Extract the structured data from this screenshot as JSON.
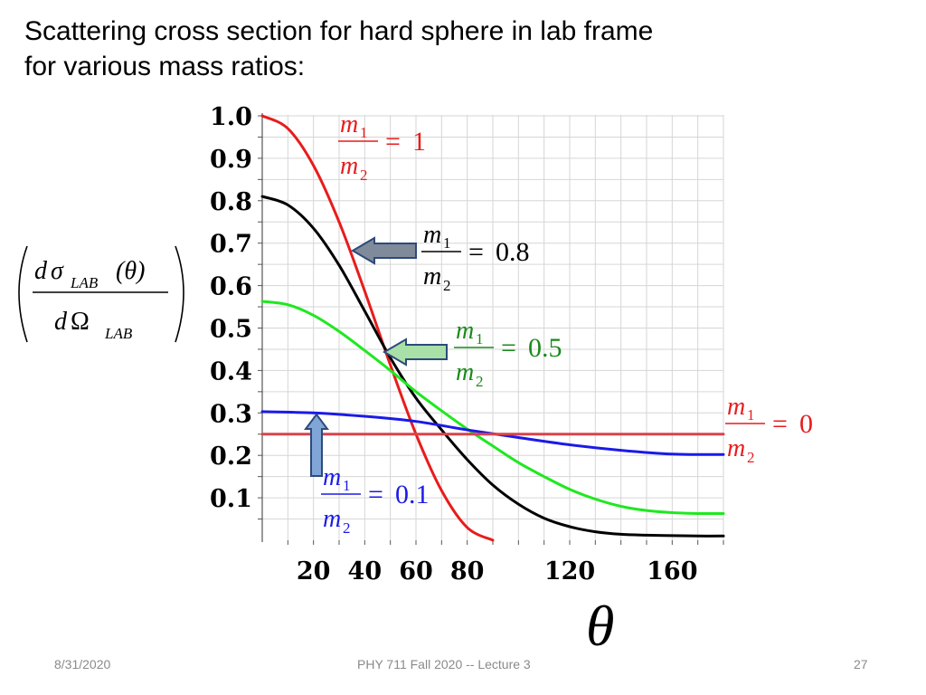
{
  "slide": {
    "title_line1": "Scattering cross section for hard sphere in lab frame",
    "title_line2": "for various mass ratios:",
    "footer_date": "8/31/2020",
    "footer_course": "PHY 711  Fall 2020 -- Lecture 3",
    "footer_page": "27"
  },
  "chart_data": {
    "type": "line",
    "title": "",
    "xlabel": "θ",
    "ylabel_numerator": {
      "d": "d",
      "sigma": "σ",
      "sub": "LAB",
      "arg": "(θ)"
    },
    "ylabel_denominator": {
      "d": "d",
      "omega": "Ω",
      "sub": "LAB"
    },
    "xlim": [
      0,
      180
    ],
    "ylim": [
      0,
      1.05
    ],
    "x_ticks": [
      20,
      40,
      60,
      80,
      120,
      160
    ],
    "y_ticks": [
      0.1,
      0.2,
      0.3,
      0.4,
      0.5,
      0.6,
      0.7,
      0.8,
      0.9,
      1.0
    ],
    "y_tick_labels": [
      "0.1",
      "0.2",
      "0.3",
      "0.4",
      "0.5",
      "0.6",
      "0.7",
      "0.8",
      "0.9",
      "1.0"
    ],
    "x_tick_labels": [
      "20",
      "40",
      "60",
      "80",
      "120",
      "160"
    ],
    "grid": true,
    "series": [
      {
        "color": "#e81c1c",
        "x": [
          0,
          10,
          20,
          30,
          40,
          50,
          60,
          70,
          80,
          90
        ],
        "y": [
          1.0,
          0.97,
          0.883,
          0.75,
          0.587,
          0.413,
          0.25,
          0.117,
          0.03,
          0.0
        ]
      },
      {
        "color": "#000000",
        "x": [
          0,
          10,
          20,
          30,
          40,
          50,
          60,
          70,
          80,
          90,
          100,
          110,
          120,
          130,
          140,
          150,
          160,
          170,
          180
        ],
        "y": [
          0.81,
          0.79,
          0.735,
          0.648,
          0.54,
          0.43,
          0.335,
          0.26,
          0.19,
          0.13,
          0.085,
          0.052,
          0.032,
          0.02,
          0.014,
          0.012,
          0.011,
          0.01,
          0.01
        ]
      },
      {
        "color": "#1fe81f",
        "x": [
          0,
          10,
          20,
          30,
          40,
          50,
          60,
          70,
          80,
          90,
          100,
          110,
          120,
          130,
          140,
          150,
          160,
          170,
          180
        ],
        "y": [
          0.563,
          0.555,
          0.53,
          0.492,
          0.447,
          0.4,
          0.35,
          0.305,
          0.262,
          0.222,
          0.183,
          0.15,
          0.12,
          0.097,
          0.08,
          0.07,
          0.065,
          0.063,
          0.063
        ]
      },
      {
        "color": "#1a1ae8",
        "x": [
          0,
          20,
          40,
          60,
          80,
          100,
          120,
          140,
          160,
          180
        ],
        "y": [
          0.303,
          0.3,
          0.292,
          0.28,
          0.26,
          0.242,
          0.225,
          0.212,
          0.203,
          0.202
        ]
      },
      {
        "color": "#d9434b",
        "x": [
          0,
          180
        ],
        "y": [
          0.25,
          0.25
        ]
      }
    ],
    "annotations": [
      {
        "id": "a1",
        "color": "#e81c1c",
        "num": "m",
        "num_sub": "1",
        "den": "m",
        "den_sub": "2",
        "eq": "=",
        "value": "1"
      },
      {
        "id": "a08",
        "color": "#000000",
        "num": "m",
        "num_sub": "1",
        "den": "m",
        "den_sub": "2",
        "eq": "=",
        "value": "0.8"
      },
      {
        "id": "a05",
        "color": "#1a8a1a",
        "num": "m",
        "num_sub": "1",
        "den": "m",
        "den_sub": "2",
        "eq": "=",
        "value": "0.5"
      },
      {
        "id": "a0",
        "color": "#e81c1c",
        "num": "m",
        "num_sub": "1",
        "den": "m",
        "den_sub": "2",
        "eq": "=",
        "value": "0"
      },
      {
        "id": "a01",
        "color": "#1a1ae8",
        "num": "m",
        "num_sub": "1",
        "den": "m",
        "den_sub": "2",
        "eq": "=",
        "value": "0.1"
      }
    ],
    "arrow_colors": {
      "gray": "#7f8a9a",
      "green": "#a8e0a8",
      "blue": "#7fa6d6",
      "outline": "#2e4a7a"
    }
  }
}
